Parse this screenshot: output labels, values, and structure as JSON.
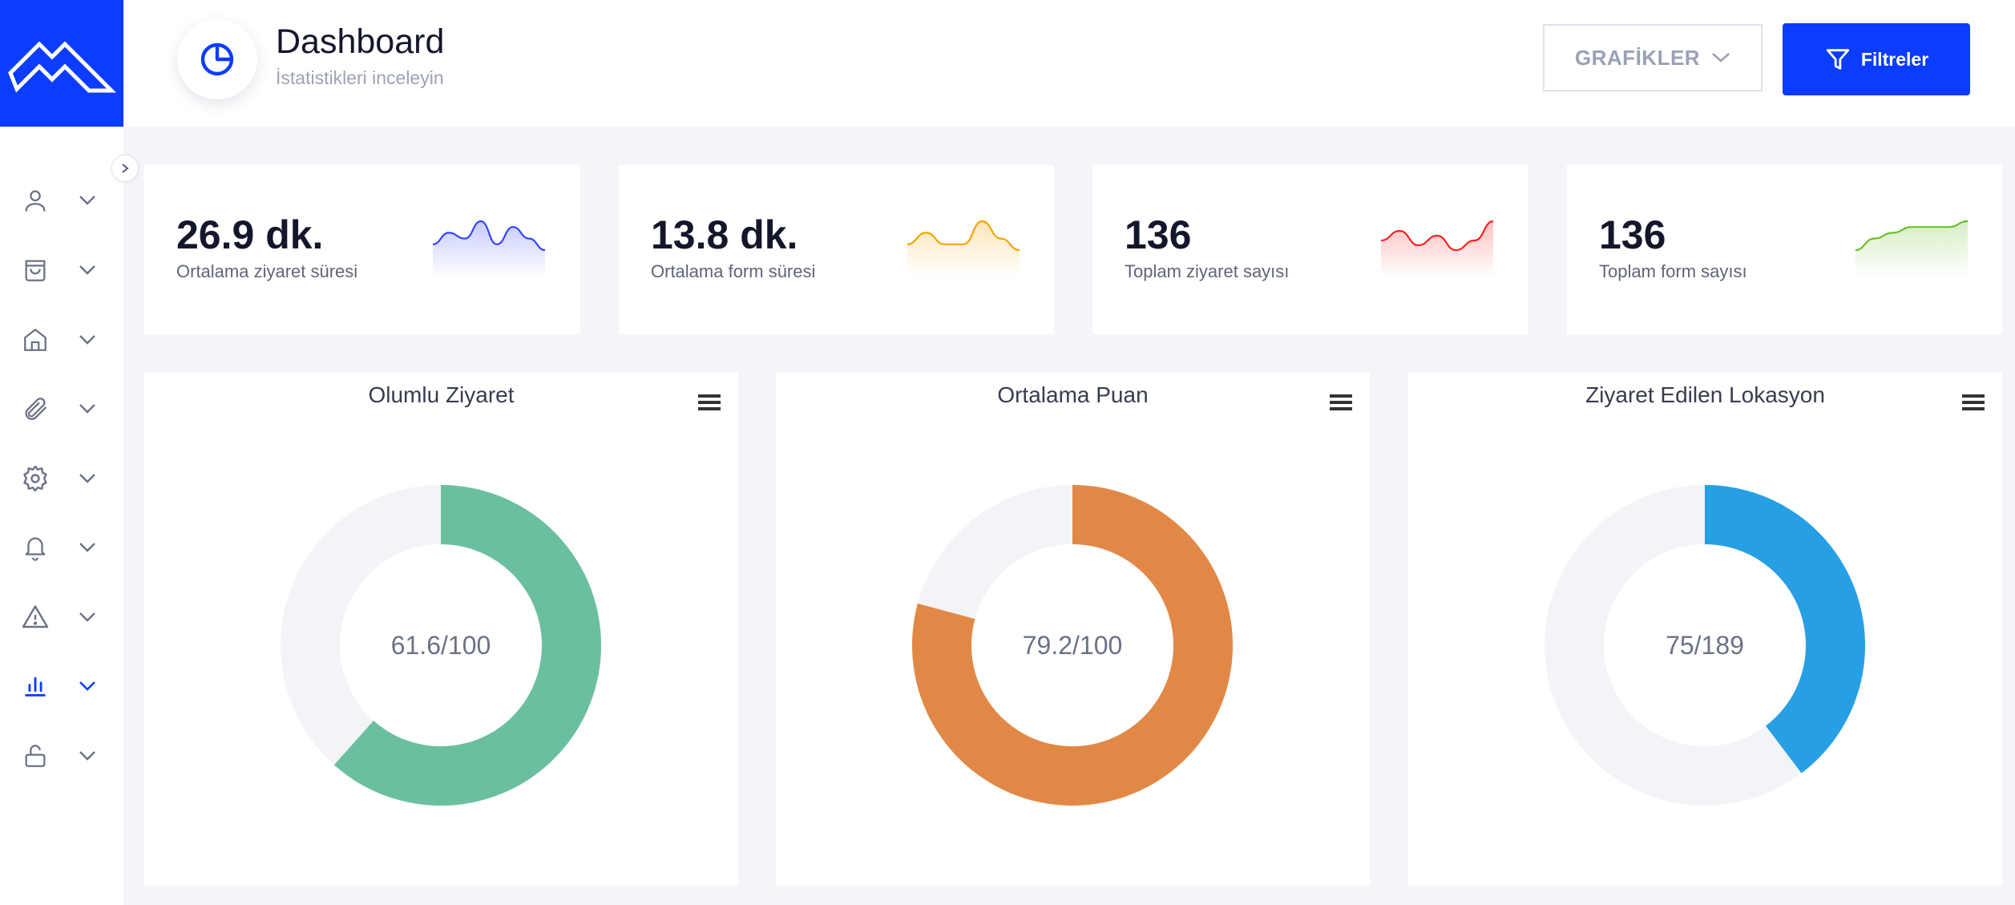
{
  "header": {
    "title": "Dashboard",
    "subtitle": "İstatistikleri inceleyin",
    "graphs_button": "GRAFİKLER",
    "filter_button": "Filtreler"
  },
  "sidebar": {
    "items": [
      {
        "icon": "user-icon",
        "active": false
      },
      {
        "icon": "shopping-bag-icon",
        "active": false
      },
      {
        "icon": "home-icon",
        "active": false
      },
      {
        "icon": "paperclip-icon",
        "active": false
      },
      {
        "icon": "gear-icon",
        "active": false
      },
      {
        "icon": "bell-icon",
        "active": false
      },
      {
        "icon": "warning-icon",
        "active": false
      },
      {
        "icon": "bar-chart-icon",
        "active": true
      },
      {
        "icon": "unlock-icon",
        "active": false
      }
    ]
  },
  "stats": [
    {
      "value": "26.9 dk.",
      "label": "Ortalama ziyaret süresi",
      "color": "#3344ff",
      "spark": [
        3,
        5,
        4,
        7,
        3,
        6,
        4,
        2
      ]
    },
    {
      "value": "13.8 dk.",
      "label": "Ortalama form süresi",
      "color": "#f5a400",
      "spark": [
        3,
        5,
        3,
        3,
        7,
        4,
        2
      ]
    },
    {
      "value": "136",
      "label": "Toplam ziyaret sayısı",
      "color": "#ff2020",
      "spark": [
        4,
        6,
        3,
        5,
        2,
        4,
        8
      ]
    },
    {
      "value": "136",
      "label": "Toplam form sayısı",
      "color": "#6cc02a",
      "spark": [
        1,
        3,
        4,
        5,
        5,
        5,
        6
      ]
    }
  ],
  "donuts": [
    {
      "title": "Olumlu Ziyaret",
      "center_text": "61.6/100",
      "fraction": 0.616,
      "color": "#6ac09e"
    },
    {
      "title": "Ortalama Puan",
      "center_text": "79.2/100",
      "fraction": 0.792,
      "color": "#e28846"
    },
    {
      "title": "Ziyaret Edilen Lokasyon",
      "center_text": "75/189",
      "fraction": 0.397,
      "color": "#279fe4"
    }
  ],
  "colors": {
    "brand": "#0b3cff",
    "track": "#f3f4f8"
  }
}
